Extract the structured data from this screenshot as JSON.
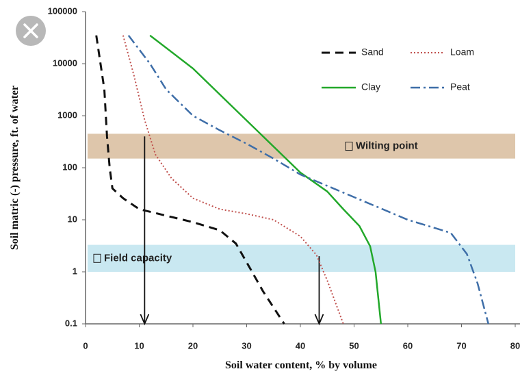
{
  "chart_data": {
    "type": "line",
    "x_label": "Soil water content, % by volume",
    "y_label": "Soil matric (-) pressure, ft. of water",
    "xlim": [
      0,
      80
    ],
    "xticks": [
      0,
      10,
      20,
      30,
      40,
      50,
      60,
      70,
      80
    ],
    "ylim": [
      0.1,
      100000
    ],
    "yticks": [
      0.1,
      1,
      10,
      100,
      1000,
      10000,
      100000
    ],
    "log_y": true,
    "legend": "upper right",
    "series": [
      {
        "name": "Sand",
        "color": "#111111",
        "style": "dashed",
        "x": [
          2,
          3.5,
          4,
          4.5,
          5,
          7,
          10,
          15,
          20,
          25,
          28,
          31,
          33,
          37
        ],
        "values": [
          35000,
          3200,
          400,
          100,
          40,
          26,
          16,
          12,
          9,
          6.3,
          3.5,
          1,
          0.43,
          0.1
        ]
      },
      {
        "name": "Loam",
        "color": "#c0504d",
        "style": "dotted",
        "x": [
          7,
          9,
          11,
          13,
          16,
          20,
          25,
          30,
          35,
          40,
          43,
          45,
          48
        ],
        "values": [
          35000,
          6000,
          830,
          180,
          63,
          26,
          16,
          13,
          10,
          4.8,
          2.1,
          0.68,
          0.1
        ]
      },
      {
        "name": "Clay",
        "color": "#22a82a",
        "style": "solid",
        "x": [
          12,
          20,
          40,
          45,
          48,
          51,
          53,
          54,
          55
        ],
        "values": [
          35000,
          8100,
          81,
          35,
          16,
          7.6,
          3.1,
          1,
          0.1
        ]
      },
      {
        "name": "Peat",
        "color": "#3e6ea8",
        "style": "dashdot",
        "x": [
          8,
          12,
          15,
          20,
          25,
          30,
          35,
          40,
          60,
          68,
          71,
          73,
          75
        ],
        "values": [
          35000,
          10000,
          3200,
          1000,
          525,
          290,
          150,
          74,
          10,
          5.6,
          2.2,
          0.6,
          0.1
        ]
      }
    ],
    "bands": [
      {
        "label": "Wilting point",
        "range": [
          150,
          450
        ],
        "color": "#d8bc9c"
      },
      {
        "label": "Field capacity",
        "range": [
          1,
          3.3
        ],
        "color": "#bfe4ee"
      }
    ],
    "arrows": [
      {
        "x": 11,
        "from": 400,
        "to": 0.1
      },
      {
        "x": 43.5,
        "from": 2,
        "to": 0.1
      }
    ]
  }
}
